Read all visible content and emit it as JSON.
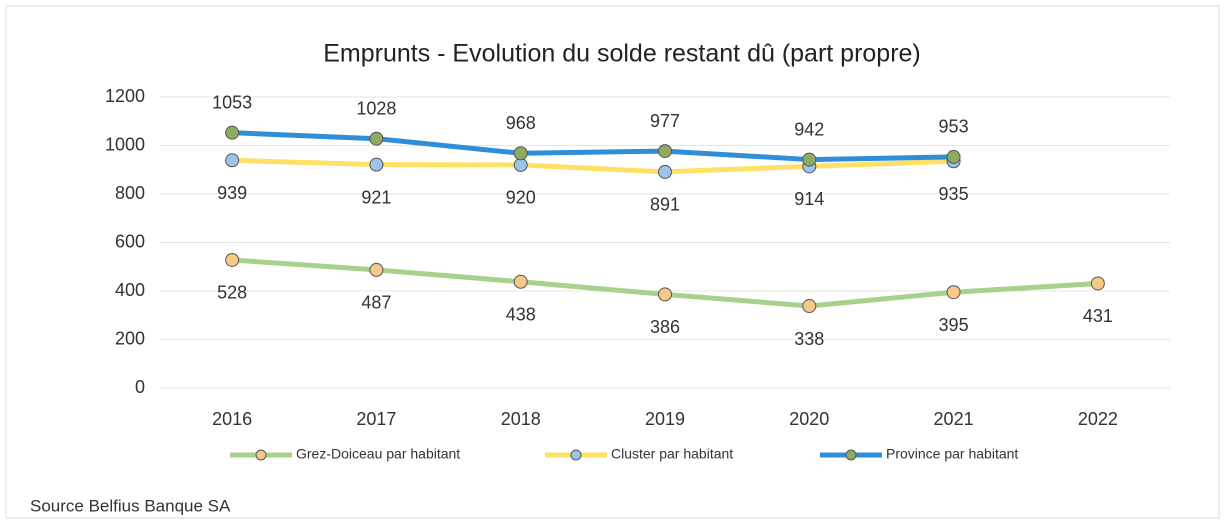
{
  "chart_data": {
    "type": "line",
    "title": "Emprunts - Evolution du solde restant dû (part propre)",
    "categories": [
      "2016",
      "2017",
      "2018",
      "2019",
      "2020",
      "2021",
      "2022"
    ],
    "series": [
      {
        "name": "Grez-Doiceau par habitant",
        "color": "#a9d18e",
        "marker_color": "#f8c78a",
        "label_position": "below",
        "values": [
          528,
          487,
          438,
          386,
          338,
          395,
          431
        ]
      },
      {
        "name": "Cluster par habitant",
        "color": "#ffe066",
        "marker_color": "#9dc3e6",
        "label_position": "below",
        "values": [
          939,
          921,
          920,
          891,
          914,
          935,
          null
        ]
      },
      {
        "name": "Province par habitant",
        "color": "#2e8fd8",
        "marker_color": "#8fab62",
        "label_position": "above",
        "values": [
          1053,
          1028,
          968,
          977,
          942,
          953,
          null
        ]
      }
    ],
    "ylim": [
      0,
      1200
    ],
    "yticks": [
      0,
      200,
      400,
      600,
      800,
      1000,
      1200
    ],
    "grid": true,
    "legend": "bottom",
    "source": "Source Belfius Banque SA"
  }
}
